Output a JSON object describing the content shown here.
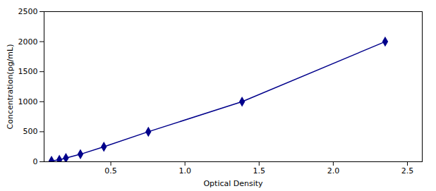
{
  "chart_data": {
    "type": "line",
    "x": [
      0.1,
      0.153,
      0.197,
      0.295,
      0.453,
      0.753,
      1.385,
      2.35
    ],
    "values": [
      15.6,
      31.25,
      62.5,
      125,
      250,
      500,
      1000,
      2000
    ],
    "color": "#00008B",
    "marker": "diamond",
    "xlabel": "Optical Density",
    "ylabel": "Concentration(pg/mL)",
    "xlim": [
      0.05,
      2.6
    ],
    "ylim": [
      0,
      2500
    ],
    "xticks": [
      0.5,
      {
        "value": 1,
        "label": "1.0"
      },
      1.5,
      {
        "value": 2,
        "label": "2.0"
      },
      2.5
    ],
    "yticks": [
      0,
      500,
      1000,
      1500,
      2000,
      2500
    ],
    "grid": false
  }
}
